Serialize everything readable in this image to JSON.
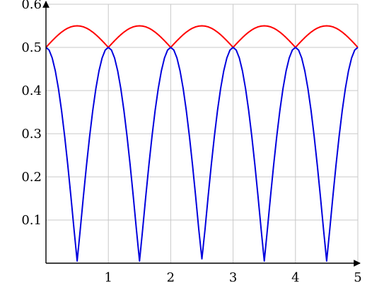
{
  "chart_data": {
    "type": "line",
    "title": "",
    "xlabel": "",
    "ylabel": "",
    "xlim": [
      0,
      5
    ],
    "ylim": [
      0,
      0.6
    ],
    "grid": true,
    "x_ticks": [
      1,
      2,
      3,
      4,
      5
    ],
    "x_tick_labels": [
      "1",
      "2",
      "3",
      "4",
      "5"
    ],
    "y_ticks": [
      0.1,
      0.2,
      0.3,
      0.4,
      0.5,
      0.6
    ],
    "y_tick_labels": [
      "0.1",
      "0.2",
      "0.3",
      "0.4",
      "0.5",
      "0.6"
    ],
    "series": [
      {
        "color": "#ff0000",
        "x": [
          0,
          0.05,
          0.1,
          0.15,
          0.2,
          0.25,
          0.3,
          0.35,
          0.4,
          0.45,
          0.5,
          0.55,
          0.6,
          0.65,
          0.7,
          0.75,
          0.8,
          0.85,
          0.9,
          0.95,
          1.0,
          1.05,
          1.1,
          1.15,
          1.2,
          1.25,
          1.3,
          1.35,
          1.4,
          1.45,
          1.5,
          1.55,
          1.6,
          1.65,
          1.7,
          1.75,
          1.8,
          1.85,
          1.9,
          1.95,
          2.0,
          2.05,
          2.1,
          2.15,
          2.2,
          2.25,
          2.3,
          2.35,
          2.4,
          2.45,
          2.5,
          2.55,
          2.6,
          2.65,
          2.7,
          2.75,
          2.8,
          2.85,
          2.9,
          2.95,
          3.0,
          3.05,
          3.1,
          3.15,
          3.2,
          3.25,
          3.3,
          3.35,
          3.4,
          3.45,
          3.5,
          3.55,
          3.6,
          3.65,
          3.7,
          3.75,
          3.8,
          3.85,
          3.9,
          3.95,
          4.0,
          4.05,
          4.1,
          4.15,
          4.2,
          4.25,
          4.3,
          4.35,
          4.4,
          4.45,
          4.5,
          4.55,
          4.6,
          4.65,
          4.7,
          4.75,
          4.8,
          4.85,
          4.9,
          4.95,
          5.0
        ],
        "y": [
          0.5,
          0.5078,
          0.5155,
          0.5227,
          0.5294,
          0.5354,
          0.5405,
          0.5446,
          0.5476,
          0.5494,
          0.55,
          0.5494,
          0.5476,
          0.5446,
          0.5405,
          0.5354,
          0.5294,
          0.5227,
          0.5155,
          0.5078,
          0.5,
          0.5078,
          0.5155,
          0.5227,
          0.5294,
          0.5354,
          0.5405,
          0.5446,
          0.5476,
          0.5494,
          0.55,
          0.5494,
          0.5476,
          0.5446,
          0.5405,
          0.5354,
          0.5294,
          0.5227,
          0.5155,
          0.5078,
          0.5,
          0.5078,
          0.5155,
          0.5227,
          0.5294,
          0.5354,
          0.5405,
          0.5446,
          0.5476,
          0.5494,
          0.55,
          0.5494,
          0.5476,
          0.5446,
          0.5405,
          0.5354,
          0.5294,
          0.5227,
          0.5155,
          0.5078,
          0.5,
          0.5078,
          0.5155,
          0.5227,
          0.5294,
          0.5354,
          0.5405,
          0.5446,
          0.5476,
          0.5494,
          0.55,
          0.5494,
          0.5476,
          0.5446,
          0.5405,
          0.5354,
          0.5294,
          0.5227,
          0.5155,
          0.5078,
          0.5,
          0.5078,
          0.5155,
          0.5227,
          0.5294,
          0.5354,
          0.5405,
          0.5446,
          0.5476,
          0.5494,
          0.55,
          0.5494,
          0.5476,
          0.5446,
          0.5405,
          0.5354,
          0.5294,
          0.5227,
          0.5155,
          0.5078,
          0.5
        ]
      },
      {
        "color": "#0000dd",
        "x": [
          0,
          0.05,
          0.1,
          0.15,
          0.2,
          0.25,
          0.3,
          0.35,
          0.4,
          0.45,
          0.5,
          0.55,
          0.6,
          0.65,
          0.7,
          0.75,
          0.8,
          0.85,
          0.9,
          0.95,
          1.0,
          1.05,
          1.1,
          1.15,
          1.2,
          1.25,
          1.3,
          1.35,
          1.4,
          1.45,
          1.5,
          1.55,
          1.6,
          1.65,
          1.7,
          1.75,
          1.8,
          1.85,
          1.9,
          1.95,
          2.0,
          2.05,
          2.1,
          2.15,
          2.2,
          2.25,
          2.3,
          2.35,
          2.4,
          2.45,
          2.5,
          2.55,
          2.6,
          2.65,
          2.7,
          2.75,
          2.8,
          2.85,
          2.9,
          2.95,
          3.0,
          3.05,
          3.1,
          3.15,
          3.2,
          3.25,
          3.3,
          3.35,
          3.4,
          3.45,
          3.5,
          3.55,
          3.6,
          3.65,
          3.7,
          3.75,
          3.8,
          3.85,
          3.9,
          3.95,
          4.0,
          4.05,
          4.1,
          4.15,
          4.2,
          4.25,
          4.3,
          4.35,
          4.4,
          4.45,
          4.5,
          4.55,
          4.6,
          4.65,
          4.7,
          4.75,
          4.8,
          4.85,
          4.9,
          4.95,
          5.0
        ],
        "y": [
          0.5,
          0.4938,
          0.4755,
          0.4455,
          0.4045,
          0.3536,
          0.2939,
          0.227,
          0.1545,
          0.0782,
          0.005,
          0.0782,
          0.1545,
          0.227,
          0.2939,
          0.3536,
          0.4045,
          0.4455,
          0.4755,
          0.4938,
          0.5,
          0.4938,
          0.4755,
          0.4455,
          0.4045,
          0.3536,
          0.2939,
          0.227,
          0.1545,
          0.0782,
          0.005,
          0.0782,
          0.1545,
          0.227,
          0.2939,
          0.3536,
          0.4045,
          0.4455,
          0.4755,
          0.4938,
          0.5,
          0.4938,
          0.4755,
          0.4455,
          0.4045,
          0.3536,
          0.2939,
          0.227,
          0.1545,
          0.0782,
          0.01,
          0.0782,
          0.1545,
          0.227,
          0.2939,
          0.3536,
          0.4045,
          0.4455,
          0.4755,
          0.4938,
          0.5,
          0.4938,
          0.4755,
          0.4455,
          0.4045,
          0.3536,
          0.2939,
          0.227,
          0.1545,
          0.0782,
          0.005,
          0.0782,
          0.1545,
          0.227,
          0.2939,
          0.3536,
          0.4045,
          0.4455,
          0.4755,
          0.4938,
          0.5,
          0.4938,
          0.4755,
          0.4455,
          0.4045,
          0.3536,
          0.2939,
          0.227,
          0.1545,
          0.0782,
          0.005,
          0.0782,
          0.1545,
          0.227,
          0.2939,
          0.3536,
          0.4045,
          0.4455,
          0.4755,
          0.4938,
          0.5
        ]
      }
    ]
  }
}
